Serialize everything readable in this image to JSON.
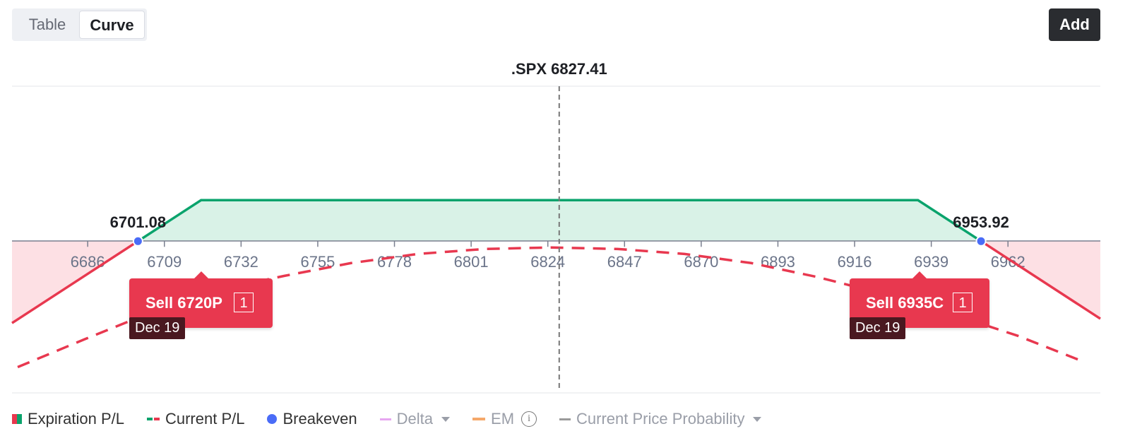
{
  "tabs": [
    "Table",
    "Curve"
  ],
  "add_button": "Add",
  "chart_data": {
    "type": "line",
    "underlying": ".SPX",
    "current_price": 6827.41,
    "xlim": [
      6663.3,
      6989.7
    ],
    "ylim": [
      -70,
      71.5
    ],
    "xticks": [
      6686,
      6709,
      6732,
      6755,
      6778,
      6801,
      6824,
      6847,
      6870,
      6893,
      6916,
      6939,
      6962
    ],
    "series": [
      {
        "name": "Expiration P/L",
        "color": "#0aa36c",
        "negative_color": "#e8384f",
        "fill": "#d9f2e7",
        "negative_fill": "#fde0e4",
        "x": [
          6663.3,
          6720,
          6935,
          6989.7
        ],
        "values": [
          -37.78,
          18.92,
          18.92,
          -35.78
        ]
      },
      {
        "name": "Current P/L",
        "color": "#e8384f",
        "dashed": true,
        "x": [
          6665,
          6685,
          6705,
          6725,
          6745,
          6765,
          6785,
          6805,
          6825,
          6845,
          6865,
          6885,
          6905,
          6925,
          6945,
          6965,
          6985
        ],
        "values": [
          -58.1,
          -45.3,
          -32.9,
          -22.5,
          -16.0,
          -10.1,
          -5.9,
          -3.6,
          -2.9,
          -3.6,
          -5.9,
          -10.1,
          -16.6,
          -24.5,
          -33.6,
          -43.7,
          -55.8
        ]
      }
    ],
    "breakeven": {
      "name": "Breakeven",
      "color": "#4a6cf7",
      "values": [
        6701.08,
        6953.92
      ]
    },
    "overlays": [
      {
        "name": "Delta",
        "color": "#e6a6f0"
      },
      {
        "name": "EM",
        "color": "#f5a86a"
      },
      {
        "name": "Current Price Probability",
        "color": "#9a9a9a"
      }
    ],
    "legs": [
      {
        "action": "Sell 6720P",
        "quantity": 1,
        "expiry": "Dec 19"
      },
      {
        "action": "Sell 6935C",
        "quantity": 1,
        "expiry": "Dec 19"
      }
    ]
  }
}
